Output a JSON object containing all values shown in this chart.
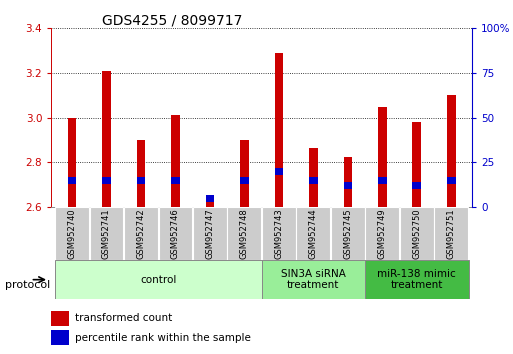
{
  "title": "GDS4255 / 8099717",
  "samples": [
    "GSM952740",
    "GSM952741",
    "GSM952742",
    "GSM952746",
    "GSM952747",
    "GSM952748",
    "GSM952743",
    "GSM952744",
    "GSM952745",
    "GSM952749",
    "GSM952750",
    "GSM952751"
  ],
  "red_values": [
    3.0,
    3.21,
    2.9,
    3.01,
    2.63,
    2.9,
    3.29,
    2.865,
    2.825,
    3.05,
    2.98,
    3.1
  ],
  "blue_percentile": [
    13,
    13,
    13,
    13,
    3,
    13,
    18,
    13,
    10,
    13,
    10,
    13
  ],
  "blue_height_pct": [
    4,
    4,
    4,
    4,
    4,
    4,
    4,
    4,
    4,
    4,
    4,
    4
  ],
  "ymin": 2.6,
  "ymax": 3.4,
  "y2min": 0,
  "y2max": 100,
  "yticks_left": [
    2.6,
    2.8,
    3.0,
    3.2,
    3.4
  ],
  "yticks_right": [
    0,
    25,
    50,
    75,
    100
  ],
  "groups": [
    {
      "label": "control",
      "start": 0,
      "end": 6,
      "color": "#ccffcc"
    },
    {
      "label": "SIN3A siRNA\ntreatment",
      "start": 6,
      "end": 9,
      "color": "#99ee99"
    },
    {
      "label": "miR-138 mimic\ntreatment",
      "start": 9,
      "end": 12,
      "color": "#44bb44"
    }
  ],
  "bar_width": 0.25,
  "red_color": "#cc0000",
  "blue_color": "#0000cc",
  "axis_color_left": "#cc0000",
  "axis_color_right": "#0000cc",
  "legend_red": "transformed count",
  "legend_blue": "percentile rank within the sample",
  "protocol_label": "protocol",
  "title_fontsize": 10
}
